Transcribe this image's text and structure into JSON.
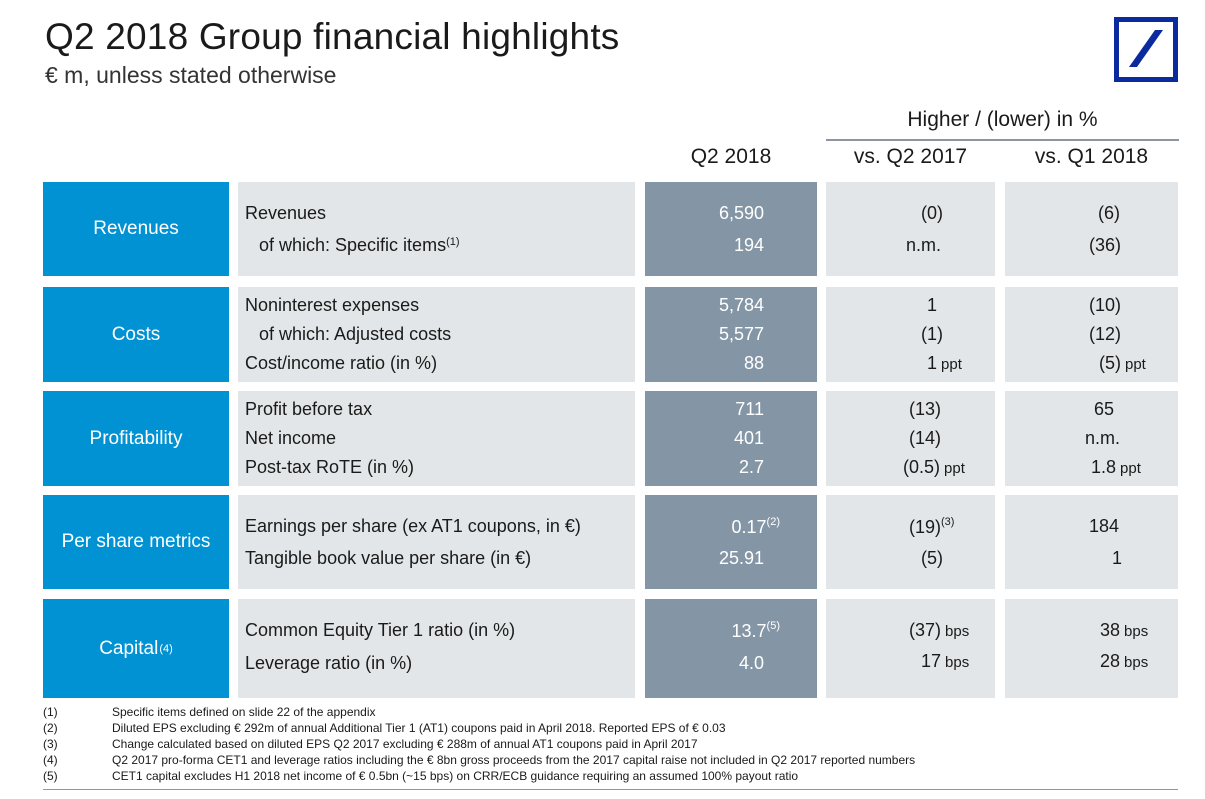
{
  "header": {
    "title": "Q2 2018 Group financial highlights",
    "subtitle": "€ m, unless stated otherwise"
  },
  "columns": {
    "group_header": "Higher / (lower) in %",
    "current": "Q2 2018",
    "vs_prior_year": "vs. Q2 2017",
    "vs_prior_quarter": "vs. Q1 2018"
  },
  "sections": {
    "revenues": {
      "label": "Revenues",
      "rows": [
        {
          "label": "Revenues",
          "value": "6,590",
          "c1": "(0)",
          "c2": "(6)"
        },
        {
          "label": "of which: Specific items",
          "note": "(1)",
          "value": "194",
          "c1": "n.m.",
          "c2": "(36)"
        }
      ]
    },
    "costs": {
      "label": "Costs",
      "rows": [
        {
          "label": "Noninterest expenses",
          "value": "5,784",
          "c1": "1",
          "c2": "(10)"
        },
        {
          "label": "of which: Adjusted costs",
          "value": "5,577",
          "c1": "(1)",
          "c2": "(12)"
        },
        {
          "label": "Cost/income ratio (in %)",
          "value": "88",
          "c1": "1",
          "c1_unit": "ppt",
          "c2": "(5)",
          "c2_unit": "ppt"
        }
      ]
    },
    "profitability": {
      "label": "Profitability",
      "rows": [
        {
          "label": "Profit before tax",
          "value": "711",
          "c1": "(13)",
          "c2": "65"
        },
        {
          "label": "Net income",
          "value": "401",
          "c1": "(14)",
          "c2": "n.m."
        },
        {
          "label": "Post-tax RoTE (in %)",
          "value": "2.7",
          "c1": "(0.5)",
          "c1_unit": "ppt",
          "c2": "1.8",
          "c2_unit": "ppt"
        }
      ]
    },
    "per_share": {
      "label": "Per share metrics",
      "rows": [
        {
          "label": "Earnings per share (ex AT1 coupons, in €)",
          "value": "0.17",
          "value_note": "(2)",
          "c1": "(19)",
          "c1_note": "(3)",
          "c2": "184"
        },
        {
          "label": "Tangible book value per share (in €)",
          "value": "25.91",
          "c1": "(5)",
          "c2": "1"
        }
      ]
    },
    "capital": {
      "label": "Capital",
      "label_note": "(4)",
      "rows": [
        {
          "label": "Common Equity Tier 1 ratio (in %)",
          "value": "13.7",
          "value_note": "(5)",
          "c1": "(37)",
          "c1_unit": "bps",
          "c2": "38",
          "c2_unit": "bps"
        },
        {
          "label": "Leverage ratio (in %)",
          "value": "4.0",
          "c1": "17",
          "c1_unit": "bps",
          "c2": "28",
          "c2_unit": "bps"
        }
      ]
    }
  },
  "footnotes": [
    {
      "num": "(1)",
      "text": "Specific items defined on slide 22 of the appendix"
    },
    {
      "num": "(2)",
      "text": "Diluted EPS excluding € 292m of annual Additional Tier 1 (AT1) coupons paid in April 2018. Reported EPS of € 0.03"
    },
    {
      "num": "(3)",
      "text": "Change calculated based on diluted EPS Q2 2017 excluding € 288m of annual AT1 coupons paid in April 2017"
    },
    {
      "num": "(4)",
      "text": "Q2 2017 pro-forma CET1 and leverage ratios including the € 8bn gross proceeds from the 2017 capital raise not included in Q2 2017 reported numbers"
    },
    {
      "num": "(5)",
      "text": "CET1 capital excludes H1 2018 net income of € 0.5bn (~15 bps) on CRR/ECB guidance requiring an assumed 100% payout ratio"
    }
  ],
  "logo": {
    "icon": "deutsche-bank-slash-logo",
    "color": "#0a2a9e"
  },
  "colors": {
    "section_label": "#0092d2",
    "value_column": "#8496a6",
    "cell_background": "#e3e6e8"
  }
}
